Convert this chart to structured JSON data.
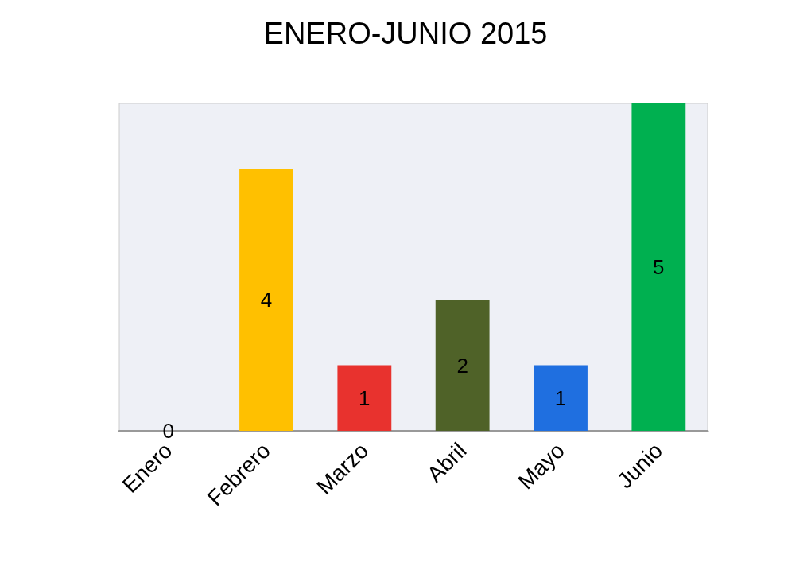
{
  "chart_data": {
    "type": "bar",
    "title": "ENERO-JUNIO 2015",
    "categories": [
      "Enero",
      "Febrero",
      "Marzo",
      "Abril",
      "Mayo",
      "Junio"
    ],
    "values": [
      0,
      4,
      1,
      2,
      1,
      5
    ],
    "colors": [
      "#7030a0",
      "#ffc000",
      "#e8322e",
      "#4f6228",
      "#1f6fe0",
      "#00b050"
    ],
    "data_labels": true
  }
}
